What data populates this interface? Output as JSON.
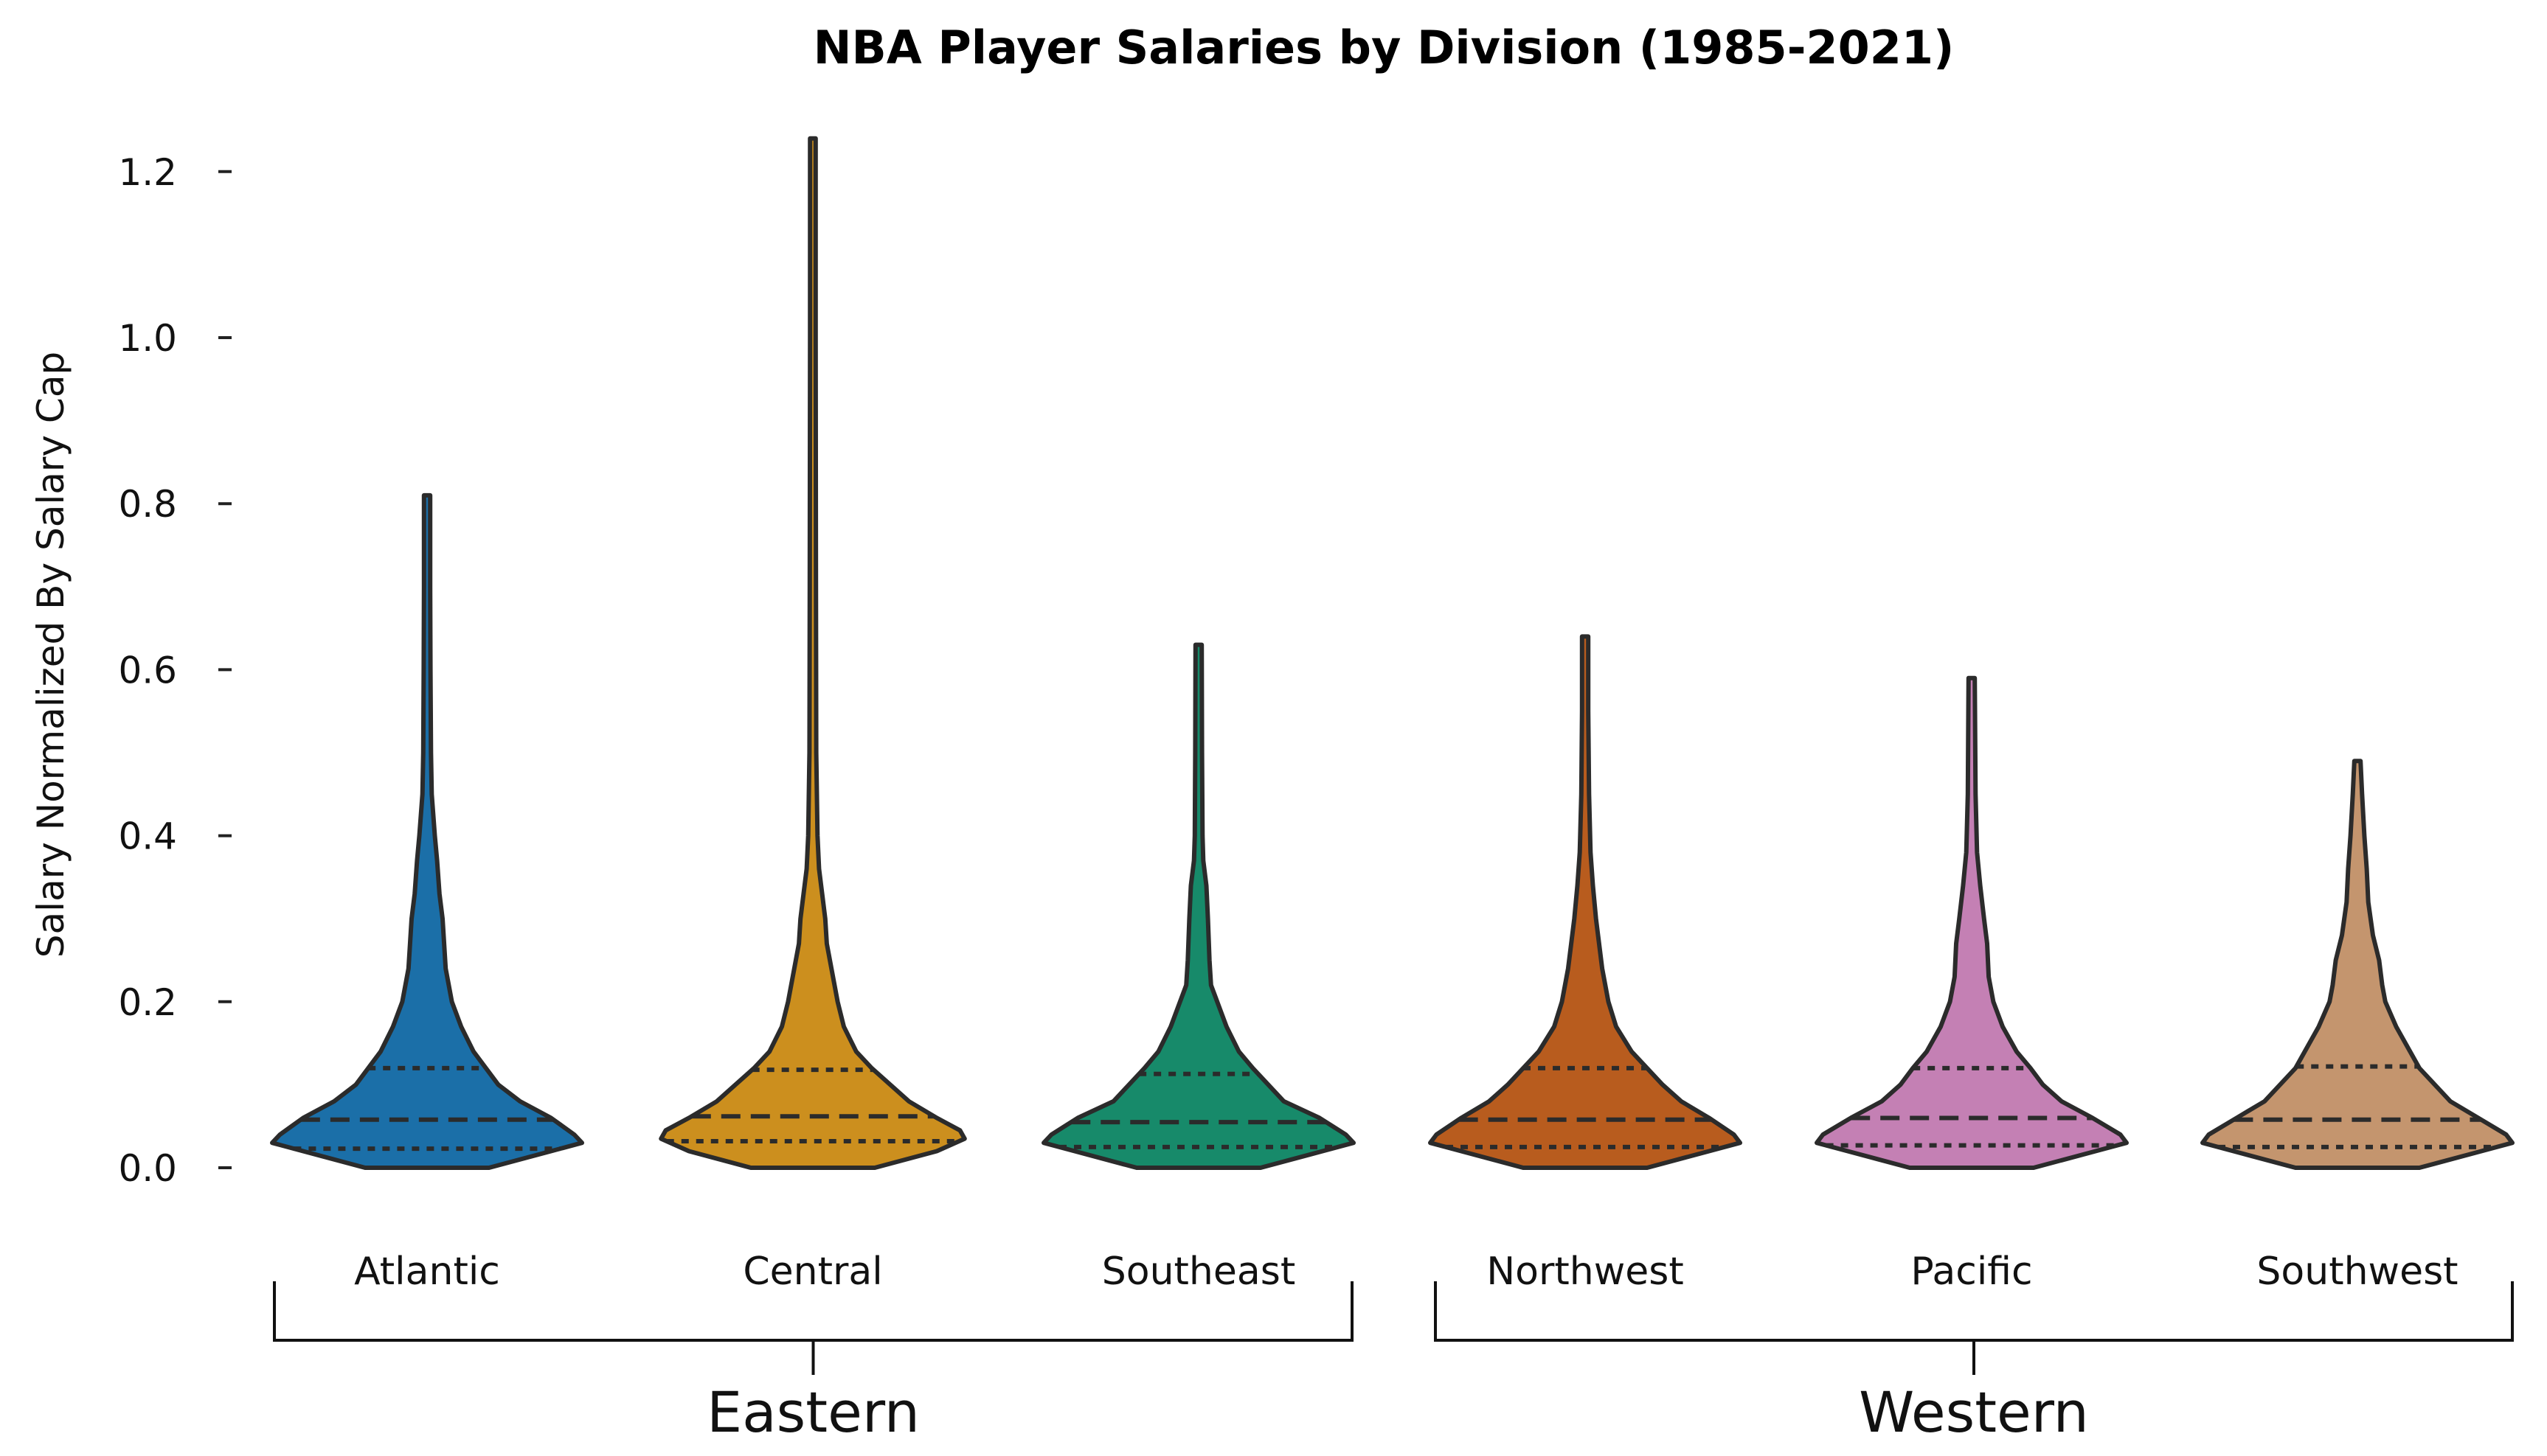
{
  "chart_data": {
    "type": "violin",
    "title": "NBA Player Salaries by Division (1985-2021)",
    "xlabel": "",
    "ylabel": "Salary Normalized By Salary Cap",
    "ylim": [
      -0.05,
      1.26
    ],
    "yticks": [
      0.0,
      0.2,
      0.4,
      0.6,
      0.8,
      1.0,
      1.2
    ],
    "ytick_labels": [
      "0.0",
      "0.2",
      "0.4",
      "0.6",
      "0.8",
      "1.0",
      "1.2"
    ],
    "grid": false,
    "groups": [
      {
        "name": "Eastern",
        "categories": [
          "Atlantic",
          "Central",
          "Southeast"
        ]
      },
      {
        "name": "Western",
        "categories": [
          "Northwest",
          "Pacific",
          "Southwest"
        ]
      }
    ],
    "series": [
      {
        "name": "Atlantic",
        "color": "#1b6fa8",
        "max": 0.81,
        "q1": 0.023,
        "median": 0.058,
        "q3": 0.12,
        "profile": [
          [
            0.0,
            0.4
          ],
          [
            0.02,
            0.8
          ],
          [
            0.03,
            1.0
          ],
          [
            0.04,
            0.95
          ],
          [
            0.06,
            0.8
          ],
          [
            0.08,
            0.6
          ],
          [
            0.1,
            0.46
          ],
          [
            0.12,
            0.38
          ],
          [
            0.14,
            0.3
          ],
          [
            0.17,
            0.22
          ],
          [
            0.2,
            0.16
          ],
          [
            0.24,
            0.12
          ],
          [
            0.27,
            0.11
          ],
          [
            0.3,
            0.1
          ],
          [
            0.33,
            0.08
          ],
          [
            0.37,
            0.065
          ],
          [
            0.4,
            0.05
          ],
          [
            0.45,
            0.03
          ],
          [
            0.5,
            0.025
          ],
          [
            0.6,
            0.022
          ],
          [
            0.7,
            0.02
          ],
          [
            0.81,
            0.02
          ]
        ]
      },
      {
        "name": "Central",
        "color": "#cc8f1e",
        "max": 1.24,
        "q1": 0.032,
        "median": 0.062,
        "q3": 0.118,
        "profile": [
          [
            0.0,
            0.4
          ],
          [
            0.02,
            0.8
          ],
          [
            0.035,
            0.98
          ],
          [
            0.045,
            0.95
          ],
          [
            0.06,
            0.8
          ],
          [
            0.08,
            0.62
          ],
          [
            0.1,
            0.5
          ],
          [
            0.12,
            0.38
          ],
          [
            0.14,
            0.28
          ],
          [
            0.17,
            0.2
          ],
          [
            0.2,
            0.16
          ],
          [
            0.24,
            0.12
          ],
          [
            0.27,
            0.09
          ],
          [
            0.3,
            0.08
          ],
          [
            0.33,
            0.06
          ],
          [
            0.36,
            0.04
          ],
          [
            0.4,
            0.03
          ],
          [
            0.5,
            0.022
          ],
          [
            0.7,
            0.02
          ],
          [
            1.0,
            0.018
          ],
          [
            1.24,
            0.018
          ]
        ]
      },
      {
        "name": "Southeast",
        "color": "#178a6a",
        "max": 0.63,
        "q1": 0.025,
        "median": 0.055,
        "q3": 0.113,
        "profile": [
          [
            0.0,
            0.4
          ],
          [
            0.02,
            0.8
          ],
          [
            0.03,
            1.0
          ],
          [
            0.04,
            0.95
          ],
          [
            0.06,
            0.78
          ],
          [
            0.08,
            0.55
          ],
          [
            0.1,
            0.45
          ],
          [
            0.12,
            0.35
          ],
          [
            0.14,
            0.26
          ],
          [
            0.17,
            0.18
          ],
          [
            0.2,
            0.12
          ],
          [
            0.22,
            0.08
          ],
          [
            0.25,
            0.07
          ],
          [
            0.3,
            0.06
          ],
          [
            0.34,
            0.05
          ],
          [
            0.37,
            0.03
          ],
          [
            0.4,
            0.025
          ],
          [
            0.5,
            0.022
          ],
          [
            0.63,
            0.02
          ]
        ]
      },
      {
        "name": "Northwest",
        "color": "#b85c1e",
        "max": 0.64,
        "q1": 0.025,
        "median": 0.058,
        "q3": 0.12,
        "profile": [
          [
            0.0,
            0.4
          ],
          [
            0.02,
            0.8
          ],
          [
            0.03,
            1.0
          ],
          [
            0.04,
            0.96
          ],
          [
            0.06,
            0.8
          ],
          [
            0.08,
            0.62
          ],
          [
            0.1,
            0.5
          ],
          [
            0.12,
            0.4
          ],
          [
            0.14,
            0.3
          ],
          [
            0.17,
            0.2
          ],
          [
            0.2,
            0.15
          ],
          [
            0.24,
            0.11
          ],
          [
            0.27,
            0.09
          ],
          [
            0.3,
            0.07
          ],
          [
            0.34,
            0.05
          ],
          [
            0.38,
            0.035
          ],
          [
            0.45,
            0.025
          ],
          [
            0.55,
            0.02
          ],
          [
            0.64,
            0.02
          ]
        ]
      },
      {
        "name": "Pacific",
        "color": "#c480b4",
        "max": 0.59,
        "q1": 0.027,
        "median": 0.06,
        "q3": 0.12,
        "profile": [
          [
            0.0,
            0.4
          ],
          [
            0.02,
            0.8
          ],
          [
            0.03,
            1.0
          ],
          [
            0.04,
            0.96
          ],
          [
            0.06,
            0.78
          ],
          [
            0.08,
            0.58
          ],
          [
            0.1,
            0.46
          ],
          [
            0.12,
            0.38
          ],
          [
            0.14,
            0.29
          ],
          [
            0.17,
            0.2
          ],
          [
            0.2,
            0.14
          ],
          [
            0.23,
            0.11
          ],
          [
            0.27,
            0.1
          ],
          [
            0.3,
            0.08
          ],
          [
            0.34,
            0.055
          ],
          [
            0.38,
            0.035
          ],
          [
            0.45,
            0.025
          ],
          [
            0.59,
            0.02
          ]
        ]
      },
      {
        "name": "Southwest",
        "color": "#c4956e",
        "max": 0.49,
        "q1": 0.025,
        "median": 0.058,
        "q3": 0.122,
        "profile": [
          [
            0.0,
            0.4
          ],
          [
            0.02,
            0.8
          ],
          [
            0.03,
            1.0
          ],
          [
            0.04,
            0.96
          ],
          [
            0.06,
            0.78
          ],
          [
            0.08,
            0.6
          ],
          [
            0.1,
            0.5
          ],
          [
            0.12,
            0.4
          ],
          [
            0.14,
            0.34
          ],
          [
            0.17,
            0.25
          ],
          [
            0.2,
            0.18
          ],
          [
            0.22,
            0.16
          ],
          [
            0.25,
            0.14
          ],
          [
            0.28,
            0.1
          ],
          [
            0.32,
            0.07
          ],
          [
            0.36,
            0.06
          ],
          [
            0.4,
            0.045
          ],
          [
            0.45,
            0.03
          ],
          [
            0.49,
            0.02
          ]
        ]
      }
    ]
  }
}
